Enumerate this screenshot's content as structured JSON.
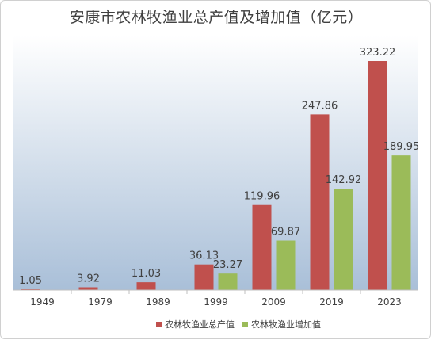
{
  "chart_data": {
    "type": "bar",
    "title": "安康市农林牧渔业总产值及增加值（亿元）",
    "categories": [
      "1949",
      "1979",
      "1989",
      "1999",
      "2009",
      "2019",
      "2023"
    ],
    "series": [
      {
        "name": "农林牧渔业总产值",
        "color": "#C0504D",
        "values": [
          1.05,
          3.92,
          11.03,
          36.13,
          119.96,
          247.86,
          323.22
        ],
        "labels": [
          "1.05",
          "3.92",
          "11.03",
          "36.13",
          "119.96",
          "247.86",
          "323.22"
        ]
      },
      {
        "name": "农林牧渔业增加值",
        "color": "#9BBB59",
        "values": [
          null,
          null,
          null,
          23.27,
          69.87,
          142.92,
          189.95
        ],
        "labels": [
          "",
          "",
          "",
          "23.27",
          "69.87",
          "142.92",
          "189.95"
        ]
      }
    ],
    "ylim": [
      0,
      340
    ],
    "legend_position": "bottom",
    "background_gradient": [
      "#ffffff",
      "#a9bfd8"
    ]
  }
}
